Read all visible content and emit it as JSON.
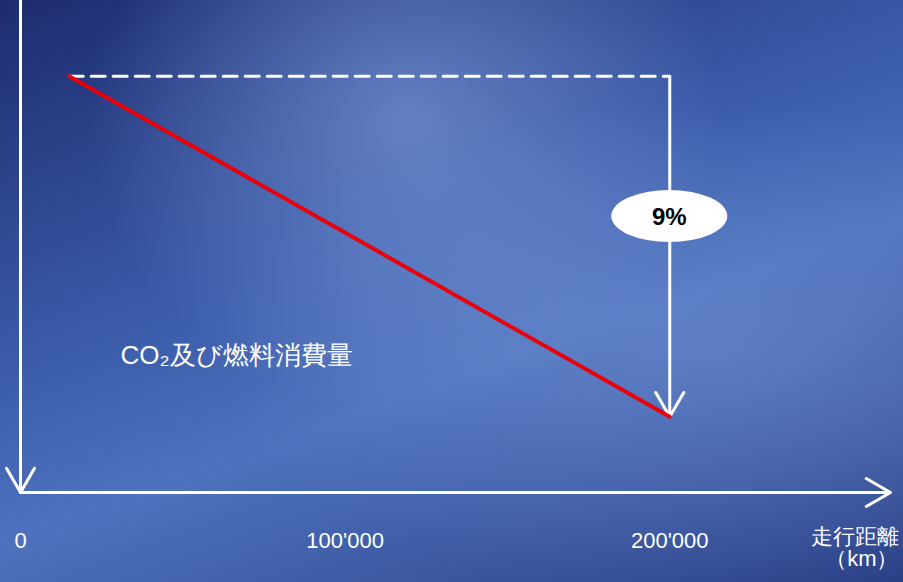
{
  "chart_data": {
    "type": "line",
    "x": [
      15000,
      200000
    ],
    "series": [
      {
        "name": "CO₂及び燃料消費量",
        "color": "#e8000b",
        "values": [
          100,
          91
        ]
      }
    ],
    "xlim": [
      0,
      268000
    ],
    "xticks": [
      0,
      {
        "value": 100000,
        "label": "100'000"
      },
      {
        "value": 200000,
        "label": "200'000"
      }
    ],
    "ylim": [
      89,
      102
    ],
    "tick_labels": "x",
    "xlabel": "走行距離\n（km）",
    "reduction": {
      "value": 9,
      "label": "9%"
    }
  }
}
